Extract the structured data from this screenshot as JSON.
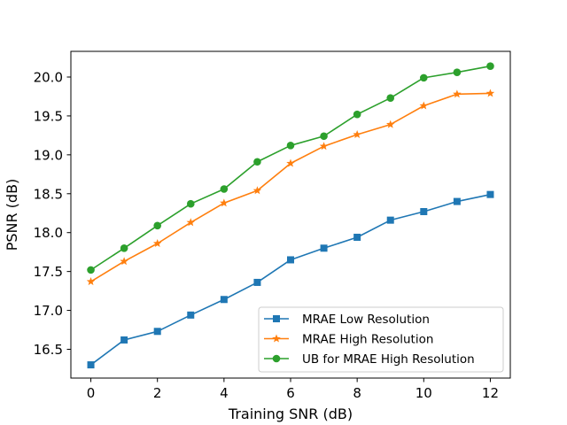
{
  "chart_data": {
    "type": "line",
    "title": "",
    "xlabel": "Training SNR (dB)",
    "ylabel": "PSNR (dB)",
    "xlim": [
      -0.6,
      12.6
    ],
    "ylim": [
      16.13,
      20.33
    ],
    "xticks": [
      0,
      2,
      4,
      6,
      8,
      10,
      12
    ],
    "xtick_labels": [
      "0",
      "2",
      "4",
      "6",
      "8",
      "10",
      "12"
    ],
    "yticks": [
      16.5,
      17.0,
      17.5,
      18.0,
      18.5,
      19.0,
      19.5,
      20.0
    ],
    "ytick_labels": [
      "16.5",
      "17.0",
      "17.5",
      "18.0",
      "18.5",
      "19.0",
      "19.5",
      "20.0"
    ],
    "grid": false,
    "legend_position": "lower-right",
    "x": [
      0,
      1,
      2,
      3,
      4,
      5,
      6,
      7,
      8,
      9,
      10,
      11,
      12
    ],
    "series": [
      {
        "name": "MRAE Low Resolution",
        "color": "#1f77b4",
        "marker": "square",
        "values": [
          16.3,
          16.62,
          16.73,
          16.94,
          17.14,
          17.36,
          17.65,
          17.8,
          17.94,
          18.16,
          18.27,
          18.4,
          18.49
        ]
      },
      {
        "name": "MRAE High Resolution",
        "color": "#ff7f0e",
        "marker": "star",
        "values": [
          17.37,
          17.63,
          17.86,
          18.13,
          18.38,
          18.54,
          18.89,
          19.11,
          19.26,
          19.39,
          19.63,
          19.78,
          19.79
        ]
      },
      {
        "name": "UB for MRAE High Resolution",
        "color": "#2ca02c",
        "marker": "circle",
        "values": [
          17.52,
          17.8,
          18.09,
          18.37,
          18.56,
          18.91,
          19.12,
          19.24,
          19.52,
          19.73,
          19.99,
          20.06,
          20.14
        ]
      }
    ]
  }
}
